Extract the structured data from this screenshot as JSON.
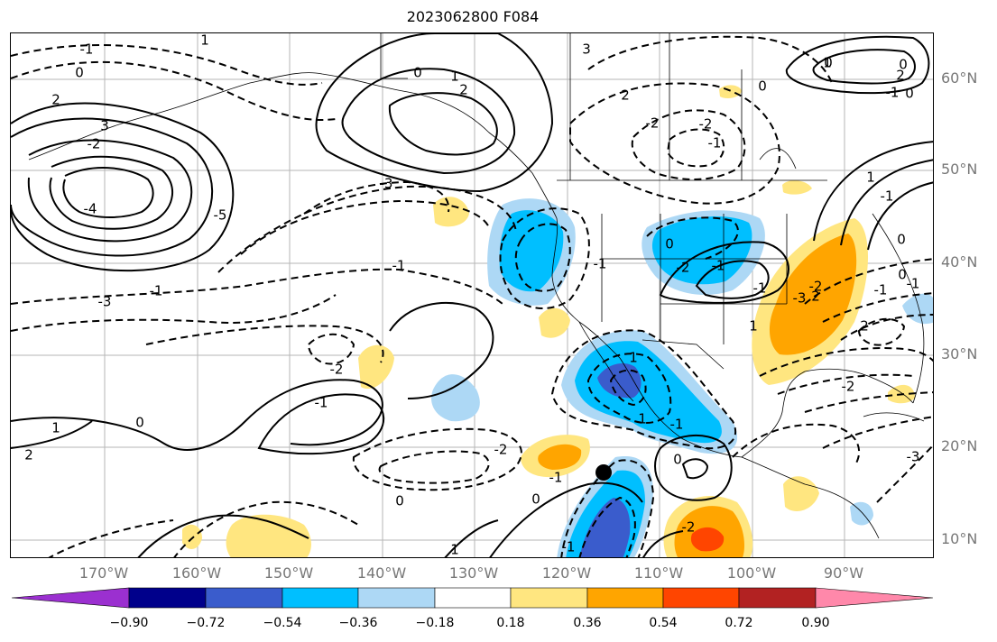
{
  "title": "2023062800 F084",
  "lon_labels": [
    "170°W",
    "160°W",
    "150°W",
    "140°W",
    "130°W",
    "120°W",
    "110°W",
    "100°W",
    "90°W"
  ],
  "lat_labels": [
    "60°N",
    "50°N",
    "40°N",
    "30°N",
    "20°N",
    "10°N"
  ],
  "colorbar": {
    "tick_labels": [
      "−0.90",
      "−0.72",
      "−0.54",
      "−0.36",
      "−0.18",
      "0.18",
      "0.36",
      "0.54",
      "0.72",
      "0.90"
    ],
    "colors": [
      "#9b30d0",
      "#00008b",
      "#3a5ccc",
      "#00bfff",
      "#add8f5",
      "#ffffff",
      "#ffe680",
      "#ffa500",
      "#ff4500",
      "#b22222",
      "#ff88aa"
    ]
  },
  "contour_labels": [
    "-1",
    "1",
    "0",
    "2",
    "3",
    "-2",
    "-4",
    "-5",
    "-3",
    "-1",
    "0",
    "1",
    "2",
    "3",
    "-3",
    "-2",
    "-1",
    "0",
    "1",
    "2",
    "-2",
    "-1",
    "0",
    "-1",
    "-3",
    "2",
    "-2",
    "2",
    "-1",
    "1",
    "-1",
    "-1",
    "1",
    "-1",
    "1",
    "2",
    "0",
    "-2",
    "0",
    "0",
    "-1",
    "0",
    "1",
    "0",
    "-1",
    "-1",
    "0",
    "-2",
    "-3",
    "-2",
    "-1",
    "0",
    "-1",
    "1",
    "1",
    "-2",
    "-1",
    "0",
    "2",
    "-2",
    "0"
  ]
}
